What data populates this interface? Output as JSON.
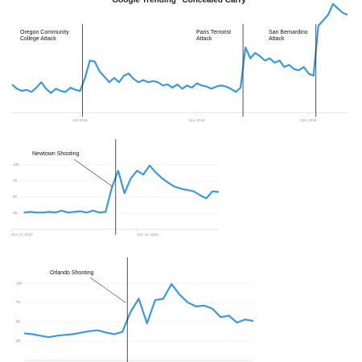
{
  "chart_data": [
    {
      "type": "line",
      "title": "Google Trending \"Concealed Carry\"",
      "x": [
        0,
        1,
        2,
        3,
        4,
        5,
        6,
        7,
        8,
        9,
        10,
        11,
        12,
        13,
        14,
        15,
        16,
        17,
        18,
        19,
        20,
        21,
        22,
        23,
        24,
        25,
        26,
        27,
        28,
        29,
        30,
        31,
        32,
        33,
        34,
        35,
        36,
        37,
        38,
        39,
        40,
        41,
        42,
        43,
        44,
        45,
        46,
        47,
        48,
        49,
        50,
        51,
        52,
        53,
        54,
        55,
        56,
        57,
        58,
        59,
        60,
        61,
        62,
        63,
        64,
        65,
        66,
        67,
        68,
        69
      ],
      "series": [
        {
          "name": "Concealed Carry",
          "color": "#3b9ad9",
          "values": [
            26,
            22,
            20,
            21,
            19,
            23,
            28,
            22,
            18,
            22,
            20,
            19,
            23,
            21,
            20,
            32,
            48,
            47,
            38,
            33,
            28,
            32,
            28,
            34,
            36,
            31,
            28,
            30,
            28,
            29,
            28,
            25,
            26,
            23,
            26,
            22,
            25,
            23,
            27,
            25,
            24,
            22,
            24,
            25,
            24,
            22,
            19,
            23,
            60,
            50,
            55,
            52,
            48,
            50,
            46,
            48,
            42,
            44,
            40,
            39,
            42,
            36,
            34,
            80,
            85,
            90,
            100,
            96,
            92,
            90
          ]
        }
      ],
      "xlim": [
        0,
        69
      ],
      "ylim": [
        0,
        100
      ],
      "xticks": [
        {
          "value": 14,
          "label": "Oct 2015"
        },
        {
          "value": 38,
          "label": "Nov 2015"
        },
        {
          "value": 61,
          "label": "Dec 2015"
        }
      ],
      "annotations": [
        {
          "text": "Oregon Community College Attack",
          "x": 14.5
        },
        {
          "text": "Paris Terrorist Attack",
          "x": 47.5
        },
        {
          "text": "San Bernardino Attack",
          "x": 62.5
        }
      ]
    },
    {
      "type": "line",
      "x": [
        0,
        1,
        2,
        3,
        4,
        5,
        6,
        7,
        8,
        9,
        10,
        11,
        12,
        13,
        14,
        15,
        16,
        17,
        18,
        19,
        20,
        21,
        22,
        23,
        24,
        25,
        26,
        27,
        28,
        29,
        30,
        31
      ],
      "series": [
        {
          "name": "Newtown",
          "color": "#3b9ad9",
          "values": [
            26,
            27,
            26,
            26,
            27,
            26,
            29,
            26,
            27,
            28,
            26,
            29,
            26,
            27,
            65,
            91,
            56,
            79,
            91,
            85,
            99,
            88,
            79,
            72,
            66,
            63,
            61,
            59,
            53,
            48,
            59,
            58
          ]
        }
      ],
      "xlim": [
        -2,
        31
      ],
      "ylim": [
        0,
        110
      ],
      "yticks": [
        25,
        50,
        75,
        100
      ],
      "xticks": [
        {
          "value": -2,
          "label": "Nov 27, 2012"
        },
        {
          "value": 18,
          "label": "Dec 14, 2012"
        }
      ],
      "grid": true,
      "annotations": [
        {
          "text": "Newtown Shooting",
          "x": 14.6
        }
      ]
    },
    {
      "type": "line",
      "x": [
        0,
        1,
        2,
        3,
        4,
        5,
        6,
        7,
        8,
        9,
        10,
        11,
        12,
        13,
        14,
        15,
        16,
        17,
        18,
        19,
        20,
        21,
        22,
        23,
        24,
        25,
        26,
        27,
        28
      ],
      "series": [
        {
          "name": "Orlando",
          "color": "#3b9ad9",
          "values": [
            35,
            34,
            32,
            30,
            32,
            33,
            34,
            36,
            38,
            39,
            36,
            34,
            37,
            63,
            80,
            48,
            78,
            80,
            99,
            85,
            75,
            70,
            71,
            67,
            56,
            58,
            49,
            53,
            51
          ]
        }
      ],
      "xlim": [
        0,
        28
      ],
      "ylim": [
        0,
        123
      ],
      "yticks": [
        25,
        50,
        75,
        100
      ],
      "grid": true,
      "annotations": [
        {
          "text": "Orlando Shooting",
          "x": 12.6
        }
      ]
    }
  ]
}
